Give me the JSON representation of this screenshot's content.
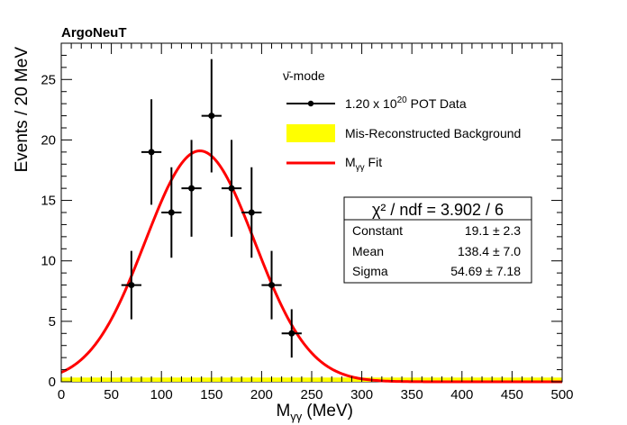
{
  "chart_data": {
    "type": "scatter",
    "experiment_label": "ArgoNeuT",
    "xlabel_main": "M",
    "xlabel_sub": "γγ",
    "xlabel_unit": "(MeV)",
    "ylabel": "Events / 20 MeV",
    "xlim": [
      0,
      500
    ],
    "ylim": [
      0,
      28
    ],
    "x_ticks": [
      0,
      50,
      100,
      150,
      200,
      250,
      300,
      350,
      400,
      450,
      500
    ],
    "y_ticks": [
      0,
      5,
      10,
      15,
      20,
      25
    ],
    "grid": false,
    "legend_placement": "top-right",
    "legend": {
      "mode": "ν̄-mode",
      "data_label_prefix": "1.20 x 10",
      "data_label_exp": "20",
      "data_label_suffix": " POT Data",
      "background_label": "Mis-Reconstructed Background",
      "fit_label_main": "M",
      "fit_label_sub": "γγ",
      "fit_label_suffix": " Fit"
    },
    "series": [
      {
        "name": "1.20 x 10^20 POT Data",
        "type": "scatter_errorbar",
        "color": "#000000",
        "x": [
          70,
          90,
          110,
          130,
          150,
          170,
          190,
          210,
          230
        ],
        "xerr": [
          10,
          10,
          10,
          10,
          10,
          10,
          10,
          10,
          10
        ],
        "y": [
          8,
          19,
          14,
          16,
          22,
          16,
          14,
          8,
          4
        ],
        "yerr": [
          2.83,
          4.36,
          3.74,
          4.0,
          4.69,
          4.0,
          3.74,
          2.83,
          2.0
        ]
      },
      {
        "name": "Mis-Reconstructed Background",
        "type": "area",
        "color": "#ffff00",
        "x": [
          0,
          500
        ],
        "y": [
          0.35,
          0.35
        ]
      },
      {
        "name": "Mγγ Fit",
        "type": "gaussian_line",
        "color": "#ff0000",
        "constant": 19.1,
        "mean": 138.4,
        "sigma": 54.69
      }
    ],
    "fit_stats": {
      "title": "χ² / ndf = 3.902 / 6",
      "rows": [
        {
          "label": "Constant",
          "value": "19.1",
          "error": "2.3"
        },
        {
          "label": "Mean",
          "value": "138.4",
          "error": "7.0"
        },
        {
          "label": "Sigma",
          "value": "54.69",
          "error": "7.18"
        }
      ]
    }
  }
}
